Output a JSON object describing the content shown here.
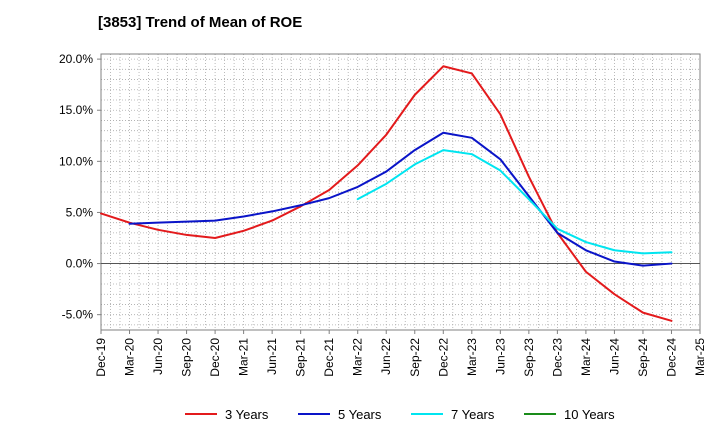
{
  "chart_data": {
    "type": "line",
    "title": "[3853]  Trend of Mean of ROE",
    "xlabel": "",
    "ylabel": "",
    "ylim": [
      -6.5,
      20.5
    ],
    "yticks": [
      20.0,
      15.0,
      10.0,
      5.0,
      0.0,
      -5.0
    ],
    "ytick_labels": [
      "20.0%",
      "15.0%",
      "10.0%",
      "5.0%",
      "0.0%",
      "-5.0%"
    ],
    "grid": true,
    "legend_position": "bottom",
    "categories": [
      "Dec-19",
      "Mar-20",
      "Jun-20",
      "Sep-20",
      "Dec-20",
      "Mar-21",
      "Jun-21",
      "Sep-21",
      "Dec-21",
      "Mar-22",
      "Jun-22",
      "Sep-22",
      "Dec-22",
      "Mar-23",
      "Jun-23",
      "Sep-23",
      "Dec-23",
      "Mar-24",
      "Jun-24",
      "Sep-24",
      "Dec-24",
      "Mar-25"
    ],
    "series": [
      {
        "name": "3 Years",
        "color": "#e31a1c",
        "values": [
          4.9,
          4.0,
          3.3,
          2.8,
          2.5,
          3.2,
          4.2,
          5.6,
          7.2,
          9.6,
          12.6,
          16.5,
          19.3,
          18.6,
          14.6,
          8.5,
          3.0,
          -0.8,
          -3.0,
          -4.8,
          -5.6,
          null
        ]
      },
      {
        "name": "5 Years",
        "color": "#0a14c8",
        "values": [
          null,
          3.9,
          4.0,
          4.1,
          4.2,
          4.6,
          5.1,
          5.7,
          6.4,
          7.5,
          9.0,
          11.1,
          12.8,
          12.3,
          10.2,
          6.6,
          3.0,
          1.3,
          0.2,
          -0.2,
          0.0,
          null
        ]
      },
      {
        "name": "7 Years",
        "color": "#00e5f0",
        "values": [
          null,
          null,
          null,
          null,
          null,
          null,
          null,
          null,
          null,
          6.3,
          7.8,
          9.7,
          11.1,
          10.7,
          9.1,
          6.3,
          3.4,
          2.1,
          1.3,
          1.0,
          1.1,
          null
        ]
      },
      {
        "name": "10 Years",
        "color": "#1a8c1a",
        "values": [
          null,
          null,
          null,
          null,
          null,
          null,
          null,
          null,
          null,
          null,
          null,
          null,
          null,
          null,
          null,
          null,
          null,
          null,
          null,
          null,
          null,
          null
        ]
      }
    ]
  }
}
